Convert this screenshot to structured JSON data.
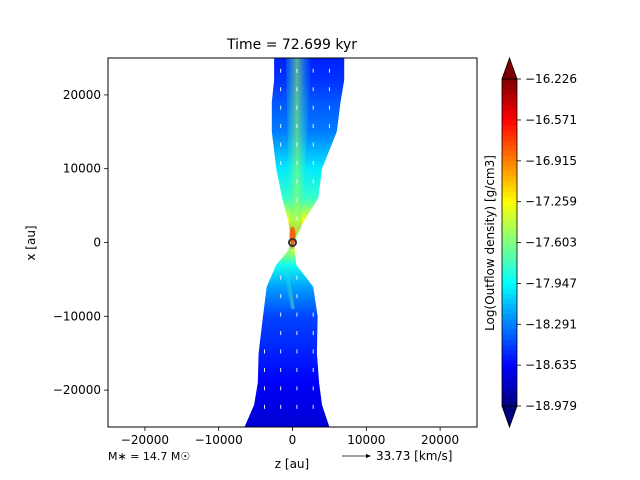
{
  "chart_data": {
    "type": "heatmap",
    "title": "Time = 72.699 kyr",
    "xlabel": "z [au]",
    "ylabel": "x [au]",
    "xlim": [
      -25000,
      25000
    ],
    "ylim": [
      -25000,
      25000
    ],
    "xticks": [
      -20000,
      -10000,
      0,
      10000,
      20000
    ],
    "xtick_labels": [
      "−20000",
      "−10000",
      "0",
      "10000",
      "20000"
    ],
    "yticks": [
      20000,
      10000,
      0,
      -10000,
      -20000
    ],
    "ytick_labels": [
      "20000",
      "10000",
      "0",
      "−10000",
      "−20000"
    ],
    "colorbar": {
      "label": "Log(Outflow density) [g/cm3]",
      "min": -18.979,
      "max": -16.226,
      "colormap": "jet",
      "ticks": [
        -16.226,
        -16.571,
        -16.915,
        -17.259,
        -17.603,
        -17.947,
        -18.291,
        -18.635,
        -18.979
      ],
      "tick_labels": [
        "−16.226",
        "−16.571",
        "−16.915",
        "−17.259",
        "−17.603",
        "−17.947",
        "−18.291",
        "−18.635",
        "−18.979"
      ]
    },
    "outflow_profile": [
      {
        "x": 25000,
        "zmin": -2500,
        "zmax": 7000,
        "value": -18.55
      },
      {
        "x": 22000,
        "zmin": -2500,
        "zmax": 7000,
        "value": -18.5
      },
      {
        "x": 19000,
        "zmin": -2800,
        "zmax": 6500,
        "value": -18.4
      },
      {
        "x": 15000,
        "zmin": -2800,
        "zmax": 6000,
        "value": -18.3
      },
      {
        "x": 10000,
        "zmin": -2200,
        "zmax": 4000,
        "value": -18.0
      },
      {
        "x": 6000,
        "zmin": -1400,
        "zmax": 3500,
        "value": -17.8
      },
      {
        "x": 3000,
        "zmin": -600,
        "zmax": 1600,
        "value": -17.3
      },
      {
        "x": 1000,
        "zmin": -300,
        "zmax": 500,
        "value": -16.9
      },
      {
        "x": 0,
        "zmin": -150,
        "zmax": 150,
        "value": -16.6
      },
      {
        "x": -1000,
        "zmin": -500,
        "zmax": 300,
        "value": -17.4
      },
      {
        "x": -3000,
        "zmin": -2200,
        "zmax": 500,
        "value": -17.9
      },
      {
        "x": -6000,
        "zmin": -3500,
        "zmax": 2800,
        "value": -18.2
      },
      {
        "x": -10000,
        "zmin": -4000,
        "zmax": 3400,
        "value": -18.45
      },
      {
        "x": -15000,
        "zmin": -4600,
        "zmax": 3300,
        "value": -18.55
      },
      {
        "x": -19000,
        "zmin": -4700,
        "zmax": 3600,
        "value": -18.65
      },
      {
        "x": -22000,
        "zmin": -5200,
        "zmax": 4000,
        "value": -18.7
      },
      {
        "x": -25000,
        "zmin": -6500,
        "zmax": 5000,
        "value": -18.75
      }
    ],
    "vector_key": {
      "label": "33.73 [km/s]"
    },
    "stellar_mass_label": "M∗ = 14.7 M☉"
  }
}
